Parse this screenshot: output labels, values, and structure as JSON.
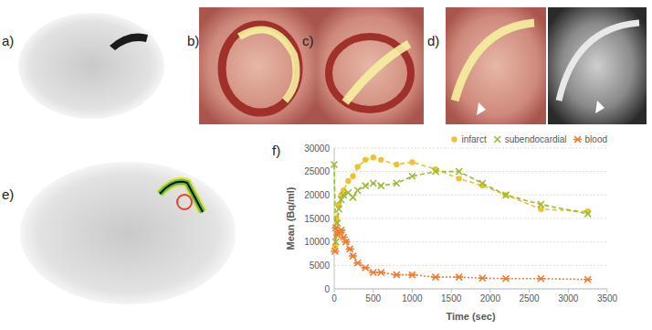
{
  "panel_labels": [
    "a)",
    "b)",
    "c)",
    "d)",
    "e)",
    "f)"
  ],
  "chart_data": {
    "type": "line",
    "x_label": "Time (sec)",
    "y_label": "Mean (Bq/ml)",
    "xlim": [
      0,
      3500
    ],
    "ylim": [
      0,
      30000
    ],
    "xticks": [
      0,
      500,
      1000,
      1500,
      2000,
      2500,
      3000,
      3500
    ],
    "yticks": [
      0,
      5000,
      10000,
      15000,
      20000,
      25000,
      30000
    ],
    "grid": true,
    "legend": "upper right",
    "series": [
      {
        "name": "infarct",
        "color": "#f2c12e",
        "marker": "circle",
        "line_style": "dashed",
        "x": [
          10,
          30,
          60,
          90,
          120,
          180,
          240,
          300,
          400,
          500,
          600,
          800,
          1000,
          1300,
          1600,
          1900,
          2200,
          2650,
          3250
        ],
        "values": [
          9000,
          15000,
          18000,
          20000,
          21000,
          23000,
          24000,
          26000,
          27500,
          28000,
          27500,
          26500,
          27000,
          25500,
          23500,
          22000,
          20000,
          17000,
          16500
        ]
      },
      {
        "name": "subendocardial",
        "color": "#9bbb3b",
        "marker": "x",
        "line_style": "dashed",
        "x": [
          0,
          20,
          40,
          60,
          90,
          120,
          180,
          240,
          300,
          400,
          500,
          600,
          800,
          1000,
          1300,
          1600,
          1900,
          2200,
          2650,
          3250
        ],
        "values": [
          26500,
          10000,
          14000,
          17000,
          19000,
          20000,
          20500,
          19500,
          21000,
          22000,
          22500,
          22000,
          22500,
          24000,
          25000,
          25000,
          22500,
          20000,
          18000,
          16000
        ]
      },
      {
        "name": "blood",
        "color": "#ed7d31",
        "marker": "asterisk",
        "line_style": "dotted",
        "x": [
          10,
          20,
          40,
          60,
          90,
          120,
          150,
          200,
          240,
          300,
          400,
          500,
          600,
          800,
          1000,
          1300,
          1600,
          1900,
          2200,
          2650,
          3250
        ],
        "values": [
          8000,
          13000,
          11500,
          12000,
          12500,
          11000,
          10000,
          8500,
          7000,
          5500,
          4500,
          3500,
          3500,
          3000,
          3000,
          2500,
          2500,
          2300,
          2200,
          2200,
          2000
        ]
      }
    ]
  }
}
